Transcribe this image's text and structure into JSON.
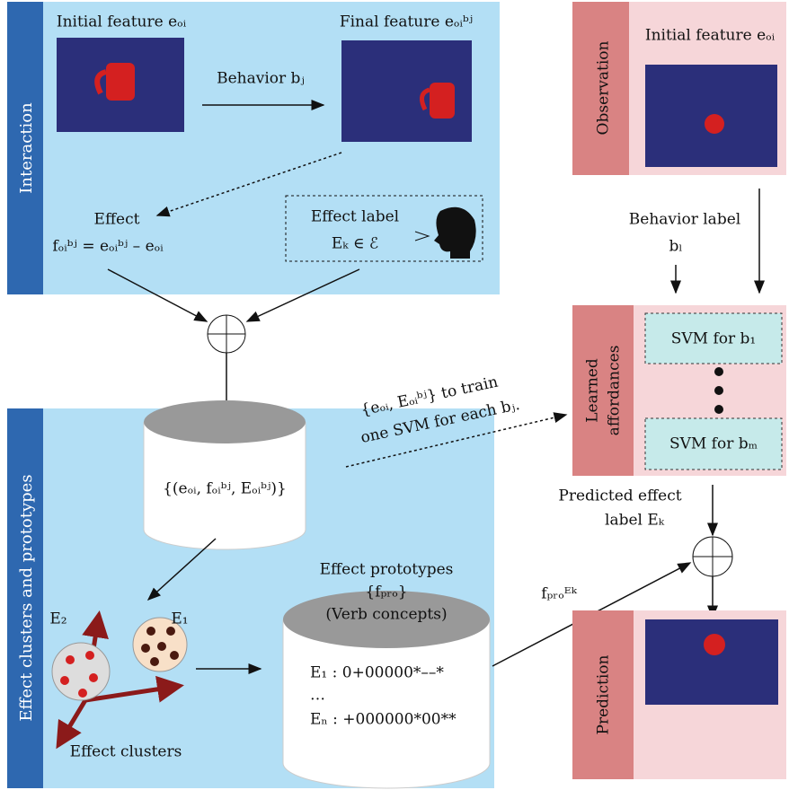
{
  "interaction": {
    "label": "Interaction",
    "initial_feature": "Initial feature eₒᵢ",
    "behavior": "Behavior bⱼ",
    "final_feature": "Final feature eₒᵢᵇʲ",
    "effect": "Effect",
    "effect_formula": "fₒᵢᵇʲ = eₒᵢᵇʲ – eₒᵢ",
    "effect_label": "Effect label",
    "effect_label_set": "Eₖ ∈ ℰ"
  },
  "clusters": {
    "label": "Effect clusters and prototypes",
    "data_set": "{(eₒᵢ, fₒᵢᵇʲ, Eₒᵢᵇʲ)}",
    "prototypes_title": "Effect prototypes",
    "prototypes_set": "{fₚᵣₒ}",
    "verb_concepts": "(Verb concepts)",
    "prototype_rows": [
      "E₁ : 0+00000*––*",
      "…",
      "Eₙ : +000000*00**"
    ],
    "cluster_labels": [
      "E₂",
      "E₁"
    ],
    "caption": "Effect clusters"
  },
  "svm_note": [
    "{eₒᵢ, Eₒᵢᵇʲ} to train",
    "one SVM for each bⱼ."
  ],
  "prediction_side": {
    "observation": "Observation",
    "initial_feature": "Initial feature eₒᵢ",
    "behavior_label": "Behavior label",
    "behavior_var": "bₗ",
    "learned_affordances": [
      "Learned",
      "affordances"
    ],
    "svm": [
      "SVM for b₁",
      "SVM for bₘ"
    ],
    "predicted_effect": [
      "Predicted effect",
      "label Eₖ"
    ],
    "prototype_var": "fₚᵣₒᴱᵏ",
    "prediction": "Prediction"
  }
}
